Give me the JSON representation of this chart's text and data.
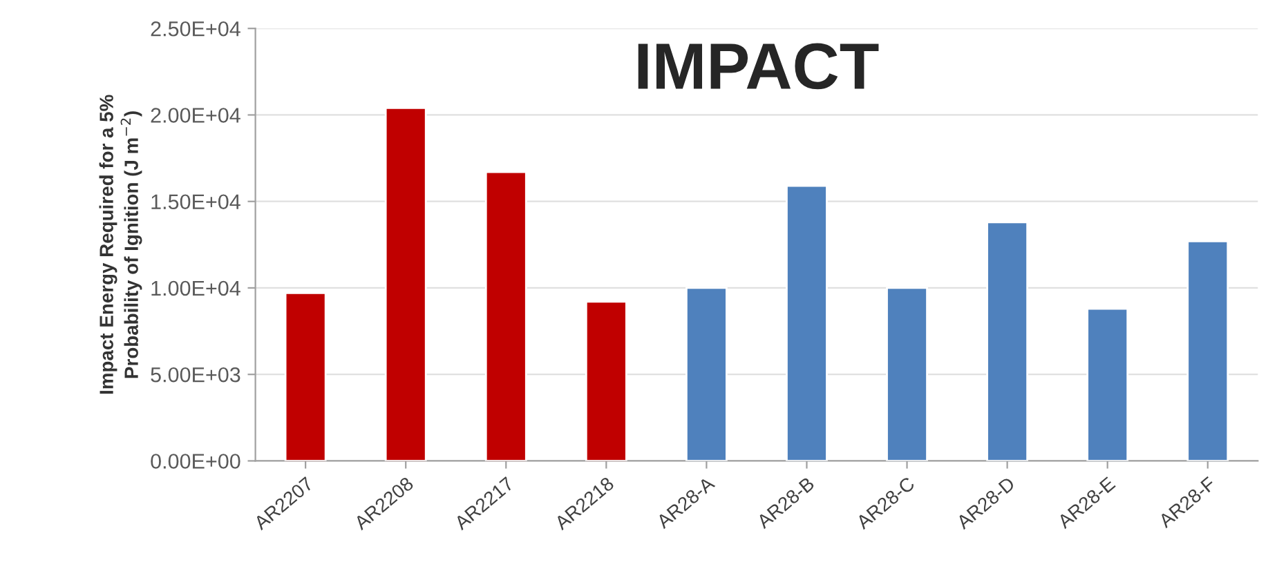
{
  "chart_data": {
    "type": "bar",
    "title": "IMPACT",
    "ylabel": "Impact Energy Required for a 5%\nProbability of Ignition (J m$^{−2}$)",
    "categories": [
      "AR2207",
      "AR2208",
      "AR2217",
      "AR2218",
      "AR28-A",
      "AR28-B",
      "AR28-C",
      "AR28-D",
      "AR28-E",
      "AR28-F"
    ],
    "values": [
      9700,
      20400,
      16700,
      9200,
      10000,
      15900,
      10000,
      13800,
      8800,
      12700
    ],
    "colors": [
      "#c00000",
      "#c00000",
      "#c00000",
      "#c00000",
      "#4f81bd",
      "#4f81bd",
      "#4f81bd",
      "#4f81bd",
      "#4f81bd",
      "#4f81bd"
    ],
    "ylim": [
      0,
      25000
    ],
    "yticks": [
      {
        "value": 0,
        "label": "0.00E+00"
      },
      {
        "value": 5000,
        "label": "5.00E+03"
      },
      {
        "value": 10000,
        "label": "1.00E+04"
      },
      {
        "value": 15000,
        "label": "1.50E+04"
      },
      {
        "value": 20000,
        "label": "2.00E+04"
      },
      {
        "value": 25000,
        "label": "2.50E+04"
      }
    ],
    "grid": "y"
  }
}
